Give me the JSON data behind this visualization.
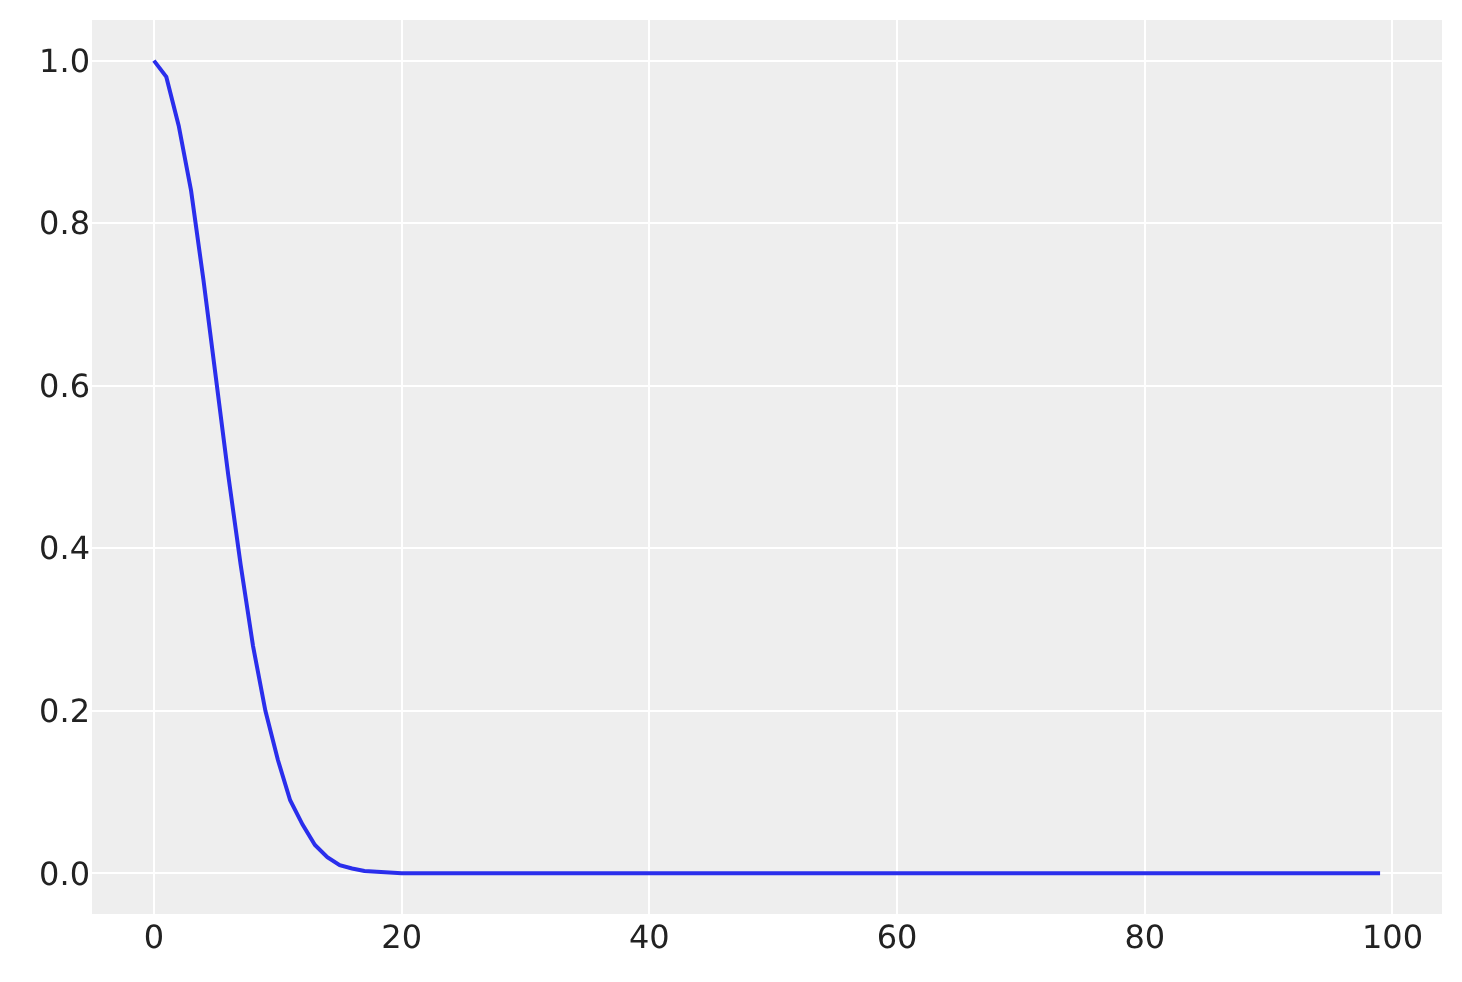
{
  "chart_data": {
    "type": "line",
    "x": [
      0,
      1,
      2,
      3,
      4,
      5,
      6,
      7,
      8,
      9,
      10,
      11,
      12,
      13,
      14,
      15,
      16,
      17,
      18,
      20,
      25,
      40,
      60,
      80,
      99
    ],
    "series": [
      {
        "color": "#2a2eec",
        "values": [
          1.0,
          0.98,
          0.92,
          0.84,
          0.73,
          0.61,
          0.49,
          0.38,
          0.28,
          0.2,
          0.14,
          0.09,
          0.06,
          0.035,
          0.02,
          0.01,
          0.006,
          0.003,
          0.002,
          0.0,
          0.0,
          0.0,
          0.0,
          0.0,
          0.0
        ]
      }
    ],
    "xlim": [
      -5,
      104
    ],
    "xticks": [
      0,
      20,
      40,
      60,
      80,
      100
    ],
    "ylim": [
      -0.05,
      1.05
    ],
    "yticks": [
      {
        "value": 0,
        "label": "0.0"
      },
      {
        "value": 0.2,
        "label": "0.2"
      },
      {
        "value": 0.4,
        "label": "0.4"
      },
      {
        "value": 0.6,
        "label": "0.6"
      },
      {
        "value": 0.8,
        "label": "0.8"
      },
      {
        "value": 1,
        "label": "1.0"
      }
    ],
    "grid": true
  }
}
